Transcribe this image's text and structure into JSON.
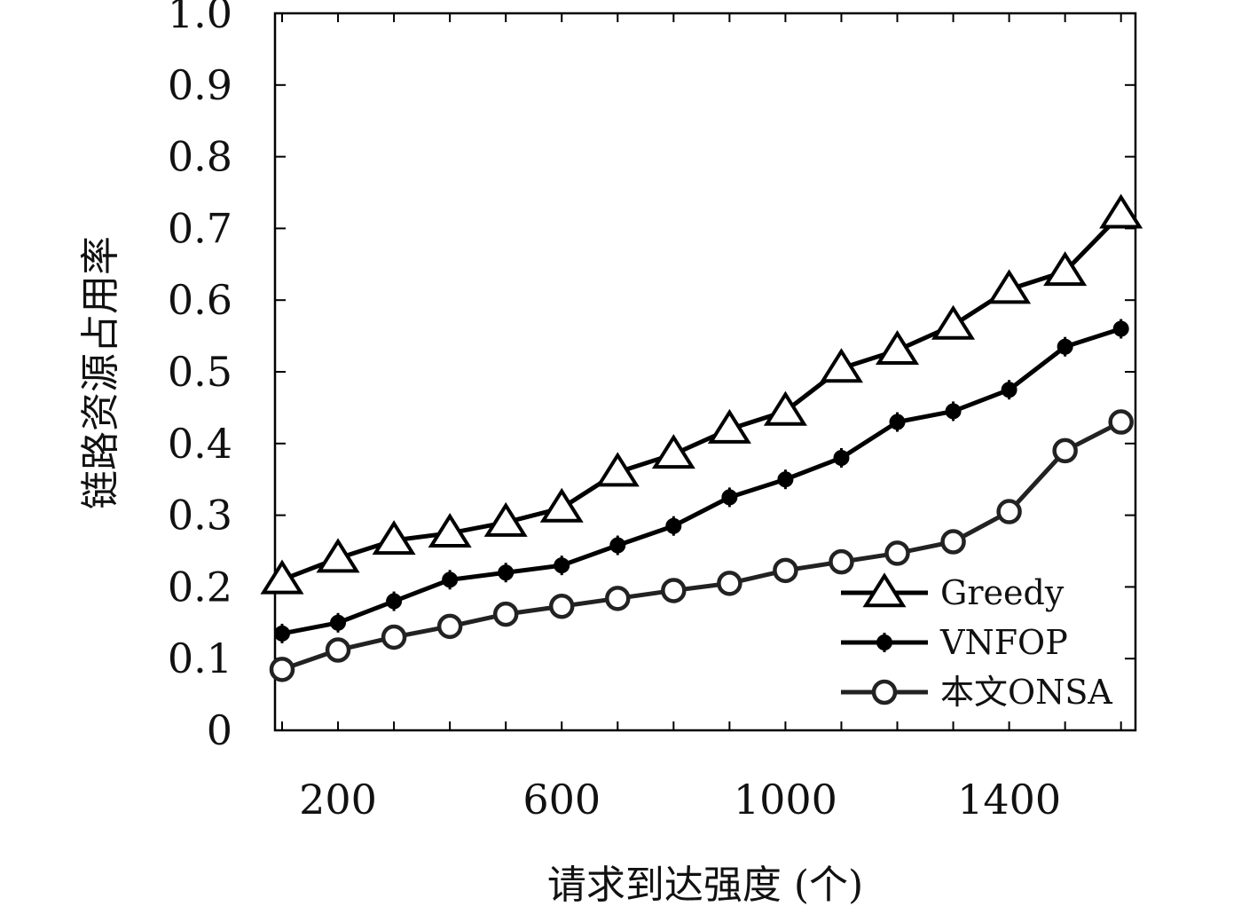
{
  "chart_data": {
    "type": "line",
    "xlabel": "请求到达强度 (个)",
    "ylabel": "链路资源占用率",
    "x": [
      100,
      200,
      300,
      400,
      500,
      600,
      700,
      800,
      900,
      1000,
      1100,
      1200,
      1300,
      1400,
      1500,
      1600
    ],
    "xticks": [
      200,
      600,
      1000,
      1400
    ],
    "xlim": [
      100,
      1610
    ],
    "yticks": [
      0,
      0.1,
      0.2,
      0.3,
      0.4,
      0.5,
      0.6,
      0.7,
      0.8,
      0.9,
      1.0
    ],
    "ytick_labels": [
      "0",
      "0.1",
      "0.2",
      "0.3",
      "0.4",
      "0.5",
      "0.6",
      "0.7",
      "0.8",
      "0.9",
      "1.0"
    ],
    "ylim": [
      0,
      1.0
    ],
    "legend_position": "bottom-right",
    "series": [
      {
        "name": "Greedy",
        "marker": "triangle",
        "color": "#000000",
        "values": [
          0.21,
          0.24,
          0.265,
          0.275,
          0.29,
          0.31,
          0.36,
          0.385,
          0.42,
          0.445,
          0.505,
          0.53,
          0.565,
          0.615,
          0.64,
          0.72
        ]
      },
      {
        "name": "VNFOP",
        "marker": "diamond",
        "color": "#000000",
        "values": [
          0.135,
          0.15,
          0.18,
          0.21,
          0.22,
          0.23,
          0.258,
          0.285,
          0.325,
          0.35,
          0.38,
          0.43,
          0.445,
          0.475,
          0.535,
          0.56
        ]
      },
      {
        "name": "本文ONSA",
        "marker": "circle",
        "color": "#222222",
        "values": [
          0.085,
          0.112,
          0.13,
          0.145,
          0.162,
          0.173,
          0.184,
          0.195,
          0.205,
          0.223,
          0.235,
          0.247,
          0.263,
          0.305,
          0.39,
          0.43
        ]
      }
    ]
  }
}
